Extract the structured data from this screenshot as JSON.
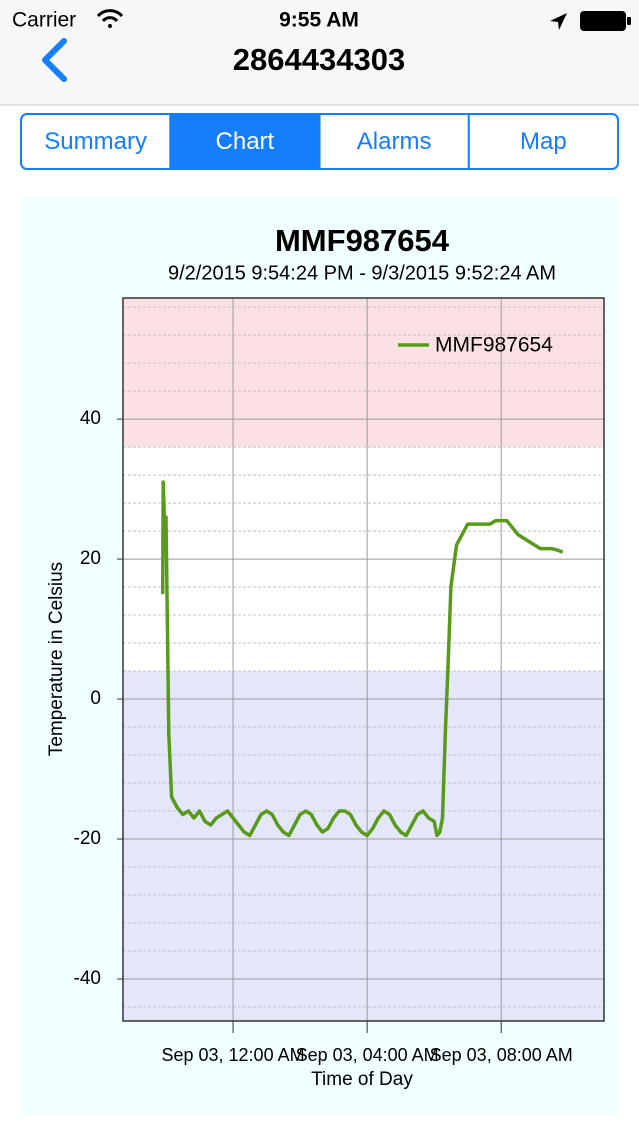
{
  "status_bar": {
    "carrier": "Carrier",
    "time": "9:55 AM"
  },
  "nav": {
    "title": "2864434303"
  },
  "tabs": {
    "items": [
      "Summary",
      "Chart",
      "Alarms",
      "Map"
    ],
    "selected": 1
  },
  "chart_data": {
    "type": "line",
    "title": "MMF987654",
    "subtitle": "9/2/2015 9:54:24 PM - 9/3/2015 9:52:24 AM",
    "x_label": "Time of Day",
    "y_label": "Temperature in Celsius",
    "xlim": [
      "2015-09-02T20:43",
      "2015-09-03T11:04"
    ],
    "xticks": [
      {
        "value": "2015-09-03T00:00",
        "label": "Sep 03, 12:00 AM"
      },
      {
        "value": "2015-09-03T04:00",
        "label": "Sep 03, 04:00 AM"
      },
      {
        "value": "2015-09-03T08:00",
        "label": "Sep 03, 08:00 AM"
      }
    ],
    "ylim": [
      -46,
      57.3
    ],
    "yticks": [
      -40,
      -20,
      0,
      20,
      40
    ],
    "yminorticks": [
      -44,
      -36,
      -32,
      -28,
      -24,
      -16,
      -12,
      -8,
      -4,
      4,
      8,
      12,
      16,
      24,
      28,
      32,
      36,
      44,
      48,
      52,
      56
    ],
    "grid": true,
    "legend": "upper right",
    "bands": [
      {
        "from": 36,
        "to": 57.3,
        "color": "#fbe1e3"
      },
      {
        "from": -46,
        "to": 4,
        "color": "#e4e6fa"
      }
    ],
    "x": [
      "2015-09-02T21:54",
      "2015-09-02T21:55",
      "2015-09-02T21:57",
      "2015-09-02T22:00",
      "2015-09-02T22:05",
      "2015-09-02T22:10",
      "2015-09-02T22:20",
      "2015-09-02T22:30",
      "2015-09-02T22:40",
      "2015-09-02T22:50",
      "2015-09-02T23:00",
      "2015-09-02T23:10",
      "2015-09-02T23:20",
      "2015-09-02T23:30",
      "2015-09-02T23:40",
      "2015-09-02T23:50",
      "2015-09-03T00:00",
      "2015-09-03T00:10",
      "2015-09-03T00:20",
      "2015-09-03T00:30",
      "2015-09-03T00:40",
      "2015-09-03T00:50",
      "2015-09-03T01:00",
      "2015-09-03T01:10",
      "2015-09-03T01:20",
      "2015-09-03T01:30",
      "2015-09-03T01:40",
      "2015-09-03T01:50",
      "2015-09-03T02:00",
      "2015-09-03T02:10",
      "2015-09-03T02:20",
      "2015-09-03T02:30",
      "2015-09-03T02:40",
      "2015-09-03T02:50",
      "2015-09-03T03:00",
      "2015-09-03T03:10",
      "2015-09-03T03:20",
      "2015-09-03T03:30",
      "2015-09-03T03:40",
      "2015-09-03T03:50",
      "2015-09-03T04:00",
      "2015-09-03T04:10",
      "2015-09-03T04:20",
      "2015-09-03T04:30",
      "2015-09-03T04:40",
      "2015-09-03T04:50",
      "2015-09-03T05:00",
      "2015-09-03T05:10",
      "2015-09-03T05:20",
      "2015-09-03T05:30",
      "2015-09-03T05:40",
      "2015-09-03T05:50",
      "2015-09-03T06:00",
      "2015-09-03T06:05",
      "2015-09-03T06:10",
      "2015-09-03T06:15",
      "2015-09-03T06:20",
      "2015-09-03T06:25",
      "2015-09-03T06:30",
      "2015-09-03T06:40",
      "2015-09-03T06:50",
      "2015-09-03T07:00",
      "2015-09-03T07:10",
      "2015-09-03T07:20",
      "2015-09-03T07:30",
      "2015-09-03T07:40",
      "2015-09-03T07:50",
      "2015-09-03T08:00",
      "2015-09-03T08:10",
      "2015-09-03T08:20",
      "2015-09-03T08:30",
      "2015-09-03T08:40",
      "2015-09-03T08:50",
      "2015-09-03T09:00",
      "2015-09-03T09:10",
      "2015-09-03T09:20",
      "2015-09-03T09:30",
      "2015-09-03T09:40",
      "2015-09-03T09:50"
    ],
    "series": [
      {
        "name": "MMF987654",
        "color": "#5a9a1a",
        "values": [
          15,
          31,
          26,
          26,
          -5,
          -14,
          -15.5,
          -16.5,
          -16,
          -17,
          -16,
          -17.5,
          -18,
          -17,
          -16.5,
          -16,
          -17,
          -18,
          -19,
          -19.5,
          -18,
          -16.5,
          -16,
          -16.5,
          -18,
          -19,
          -19.5,
          -18,
          -16.5,
          -16,
          -16.5,
          -18,
          -19,
          -18.5,
          -17,
          -16,
          -16,
          -16.5,
          -18,
          -19,
          -19.5,
          -18.5,
          -17,
          -16,
          -16.5,
          -18,
          -19,
          -19.5,
          -18,
          -16.5,
          -16,
          -17,
          -17.5,
          -19.5,
          -19,
          -17,
          -5,
          5,
          16,
          22,
          23.5,
          25,
          25,
          25,
          25,
          25,
          25.5,
          25.5,
          25.5,
          24.5,
          23.5,
          23,
          22.5,
          22,
          21.5,
          21.5,
          21.5,
          21.3,
          21
        ]
      }
    ]
  }
}
